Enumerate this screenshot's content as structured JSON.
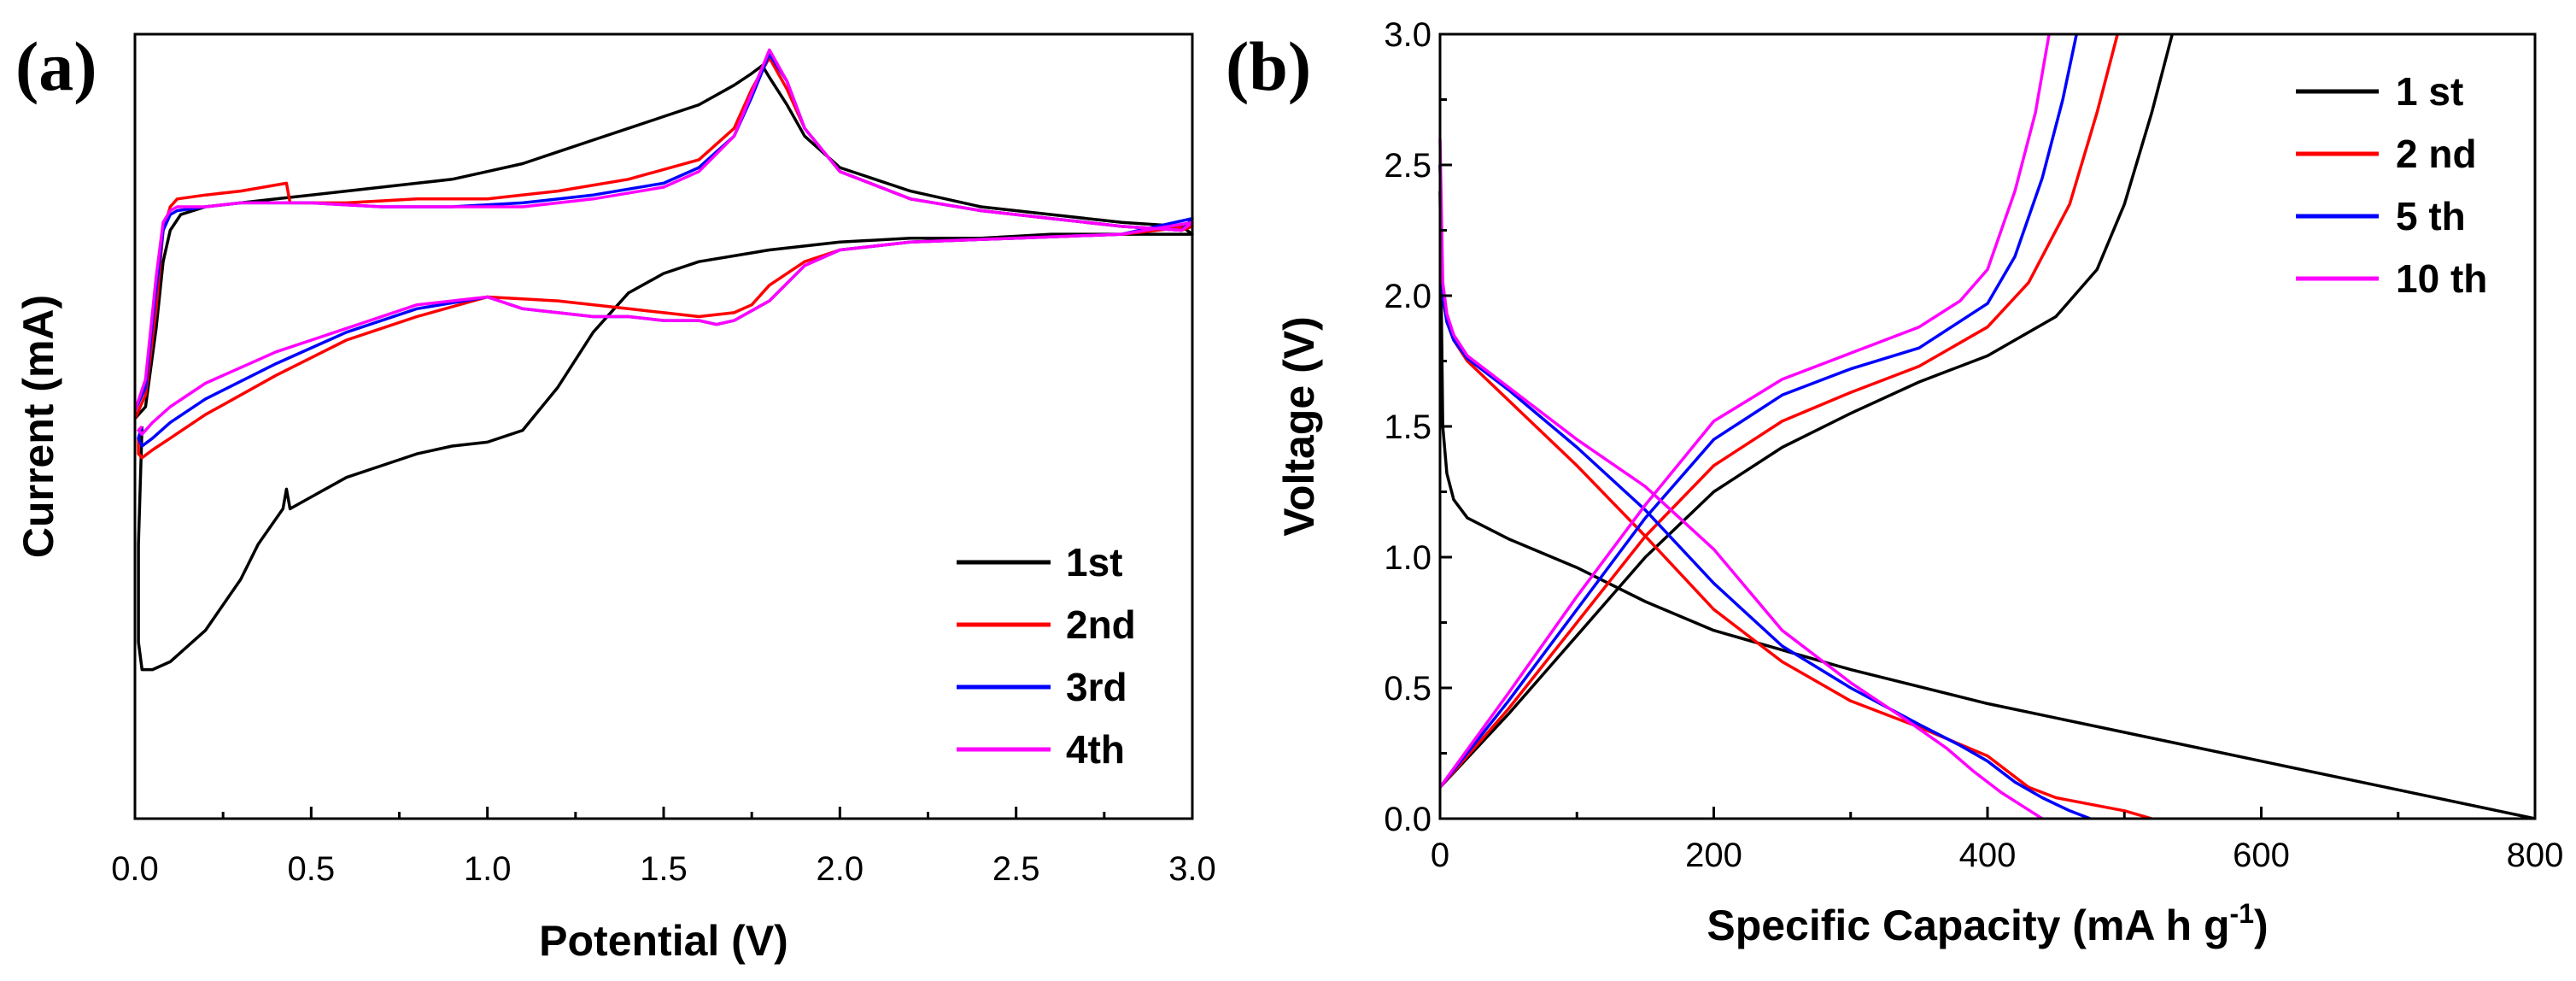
{
  "chart_data": [
    {
      "type": "line",
      "panel_label": "(a)",
      "xlabel": "Potential (V)",
      "ylabel": "Current (mA)",
      "xlim": [
        0.0,
        3.0
      ],
      "ylim": [
        -1.0,
        1.0
      ],
      "xticks": [
        "0.0",
        "0.5",
        "1.0",
        "1.5",
        "2.0",
        "2.5",
        "3.0"
      ],
      "yticks_visible": false,
      "legend_position": "bottom-right",
      "series": [
        {
          "name": "1st",
          "color": "#000000",
          "x": [
            0.0,
            0.03,
            0.06,
            0.08,
            0.1,
            0.13,
            0.2,
            0.3,
            0.4,
            0.5,
            0.6,
            0.7,
            0.8,
            0.9,
            1.0,
            1.1,
            1.2,
            1.3,
            1.4,
            1.5,
            1.6,
            1.7,
            1.75,
            1.78,
            1.8,
            1.85,
            1.9,
            2.0,
            2.2,
            2.4,
            2.6,
            2.8,
            2.97,
            3.0,
            2.8,
            2.6,
            2.4,
            2.2,
            2.0,
            1.8,
            1.6,
            1.5,
            1.4,
            1.3,
            1.2,
            1.1,
            1.0,
            0.9,
            0.8,
            0.7,
            0.6,
            0.5,
            0.44,
            0.43,
            0.42,
            0.35,
            0.3,
            0.2,
            0.1,
            0.05,
            0.02,
            0.01,
            0.01,
            0.02
          ],
          "y": [
            0.02,
            0.05,
            0.25,
            0.42,
            0.5,
            0.54,
            0.56,
            0.57,
            0.58,
            0.59,
            0.6,
            0.61,
            0.62,
            0.63,
            0.65,
            0.67,
            0.7,
            0.73,
            0.76,
            0.79,
            0.82,
            0.87,
            0.9,
            0.92,
            0.89,
            0.82,
            0.74,
            0.66,
            0.6,
            0.56,
            0.54,
            0.52,
            0.51,
            0.49,
            0.49,
            0.49,
            0.48,
            0.48,
            0.47,
            0.45,
            0.42,
            0.39,
            0.34,
            0.24,
            0.1,
            -0.01,
            -0.04,
            -0.05,
            -0.07,
            -0.1,
            -0.13,
            -0.18,
            -0.21,
            -0.16,
            -0.21,
            -0.3,
            -0.39,
            -0.52,
            -0.6,
            -0.62,
            -0.62,
            -0.55,
            -0.3,
            0.0
          ]
        },
        {
          "name": "2nd",
          "color": "#ff0000",
          "x": [
            0.0,
            0.03,
            0.06,
            0.08,
            0.1,
            0.12,
            0.2,
            0.3,
            0.43,
            0.44,
            0.5,
            0.6,
            0.8,
            1.0,
            1.2,
            1.4,
            1.6,
            1.7,
            1.75,
            1.8,
            1.85,
            1.9,
            2.0,
            2.2,
            2.4,
            2.6,
            2.8,
            2.97,
            3.0,
            2.8,
            2.5,
            2.2,
            2.0,
            1.9,
            1.8,
            1.75,
            1.7,
            1.6,
            1.5,
            1.4,
            1.2,
            1.0,
            0.8,
            0.6,
            0.4,
            0.2,
            0.1,
            0.05,
            0.02,
            0.01,
            0.01,
            0.02
          ],
          "y": [
            0.02,
            0.08,
            0.3,
            0.5,
            0.56,
            0.58,
            0.59,
            0.6,
            0.62,
            0.57,
            0.57,
            0.57,
            0.58,
            0.58,
            0.6,
            0.63,
            0.68,
            0.76,
            0.86,
            0.94,
            0.86,
            0.76,
            0.65,
            0.58,
            0.55,
            0.53,
            0.51,
            0.5,
            0.51,
            0.49,
            0.48,
            0.47,
            0.45,
            0.42,
            0.36,
            0.31,
            0.29,
            0.28,
            0.29,
            0.3,
            0.32,
            0.33,
            0.28,
            0.22,
            0.13,
            0.03,
            -0.03,
            -0.06,
            -0.08,
            -0.07,
            -0.03,
            0.0
          ]
        },
        {
          "name": "3rd",
          "color": "#0000ff",
          "x": [
            0.0,
            0.03,
            0.06,
            0.08,
            0.1,
            0.12,
            0.2,
            0.3,
            0.5,
            0.7,
            0.9,
            1.1,
            1.3,
            1.5,
            1.6,
            1.7,
            1.75,
            1.8,
            1.85,
            1.9,
            2.0,
            2.2,
            2.4,
            2.6,
            2.8,
            2.97,
            3.0,
            2.8,
            2.5,
            2.2,
            2.0,
            1.9,
            1.8,
            1.7,
            1.65,
            1.6,
            1.5,
            1.4,
            1.3,
            1.2,
            1.1,
            1.0,
            0.8,
            0.6,
            0.4,
            0.2,
            0.1,
            0.05,
            0.02,
            0.01,
            0.02
          ],
          "y": [
            0.04,
            0.1,
            0.35,
            0.5,
            0.54,
            0.55,
            0.56,
            0.57,
            0.57,
            0.56,
            0.56,
            0.57,
            0.59,
            0.62,
            0.66,
            0.74,
            0.84,
            0.95,
            0.88,
            0.76,
            0.65,
            0.58,
            0.55,
            0.53,
            0.51,
            0.5,
            0.53,
            0.49,
            0.48,
            0.47,
            0.45,
            0.41,
            0.32,
            0.27,
            0.26,
            0.27,
            0.27,
            0.28,
            0.28,
            0.29,
            0.3,
            0.33,
            0.3,
            0.24,
            0.16,
            0.07,
            0.01,
            -0.03,
            -0.05,
            -0.03,
            0.0
          ]
        },
        {
          "name": "4th",
          "color": "#ff00ff",
          "x": [
            0.0,
            0.03,
            0.06,
            0.08,
            0.1,
            0.12,
            0.2,
            0.3,
            0.5,
            0.7,
            0.9,
            1.1,
            1.3,
            1.5,
            1.6,
            1.7,
            1.75,
            1.8,
            1.85,
            1.9,
            2.0,
            2.2,
            2.4,
            2.6,
            2.8,
            2.97,
            3.0,
            2.8,
            2.5,
            2.2,
            2.0,
            1.9,
            1.8,
            1.7,
            1.65,
            1.6,
            1.5,
            1.4,
            1.3,
            1.2,
            1.1,
            1.0,
            0.8,
            0.6,
            0.4,
            0.2,
            0.1,
            0.05,
            0.02,
            0.01,
            0.02
          ],
          "y": [
            0.04,
            0.12,
            0.38,
            0.52,
            0.55,
            0.56,
            0.56,
            0.57,
            0.57,
            0.56,
            0.56,
            0.56,
            0.58,
            0.61,
            0.65,
            0.74,
            0.85,
            0.96,
            0.88,
            0.76,
            0.65,
            0.58,
            0.55,
            0.53,
            0.51,
            0.5,
            0.52,
            0.49,
            0.48,
            0.47,
            0.45,
            0.41,
            0.32,
            0.27,
            0.26,
            0.27,
            0.27,
            0.28,
            0.28,
            0.29,
            0.3,
            0.33,
            0.31,
            0.25,
            0.19,
            0.11,
            0.05,
            0.01,
            -0.02,
            -0.01,
            0.0
          ]
        }
      ]
    },
    {
      "type": "line",
      "panel_label": "(b)",
      "xlabel": "Specific Capacity (mA h g",
      "xlabel_superscript": "-1",
      "xlabel_suffix": ")",
      "ylabel": "Voltage (V)",
      "xlim": [
        0,
        800
      ],
      "ylim": [
        0.0,
        3.0
      ],
      "xticks": [
        "0",
        "200",
        "400",
        "600",
        "800"
      ],
      "yticks": [
        "0.0",
        "0.5",
        "1.0",
        "1.5",
        "2.0",
        "2.5",
        "3.0"
      ],
      "legend_position": "top-right",
      "series": [
        {
          "name": "1 st",
          "color": "#000000",
          "discharge": {
            "x": [
              0,
              2,
              5,
              10,
              20,
              50,
              100,
              150,
              200,
              300,
              400,
              500,
              600,
              700,
              800
            ],
            "y": [
              2.4,
              1.5,
              1.32,
              1.22,
              1.15,
              1.07,
              0.96,
              0.83,
              0.72,
              0.57,
              0.44,
              0.33,
              0.22,
              0.11,
              0.0
            ]
          },
          "charge": {
            "x": [
              0,
              50,
              100,
              150,
              200,
              250,
              300,
              350,
              400,
              450,
              480,
              500,
              520,
              535
            ],
            "y": [
              0.12,
              0.4,
              0.7,
              1.0,
              1.25,
              1.42,
              1.55,
              1.67,
              1.77,
              1.92,
              2.1,
              2.35,
              2.7,
              3.0
            ]
          }
        },
        {
          "name": "2 nd",
          "color": "#ff0000",
          "discharge": {
            "x": [
              0,
              2,
              5,
              10,
              20,
              50,
              100,
              150,
              200,
              250,
              300,
              350,
              400,
              430,
              450,
              480,
              500,
              520
            ],
            "y": [
              2.5,
              2.0,
              1.9,
              1.83,
              1.75,
              1.6,
              1.35,
              1.08,
              0.8,
              0.6,
              0.45,
              0.35,
              0.24,
              0.12,
              0.08,
              0.05,
              0.03,
              0.0
            ]
          },
          "charge": {
            "x": [
              0,
              50,
              100,
              150,
              200,
              250,
              300,
              350,
              400,
              430,
              460,
              480,
              495
            ],
            "y": [
              0.12,
              0.42,
              0.75,
              1.08,
              1.35,
              1.52,
              1.63,
              1.73,
              1.88,
              2.05,
              2.35,
              2.7,
              3.0
            ]
          }
        },
        {
          "name": "5 th",
          "color": "#0000ff",
          "discharge": {
            "x": [
              0,
              2,
              5,
              10,
              20,
              50,
              100,
              150,
              200,
              250,
              300,
              350,
              380,
              400,
              420,
              440,
              460,
              475
            ],
            "y": [
              2.5,
              2.0,
              1.9,
              1.83,
              1.76,
              1.64,
              1.42,
              1.18,
              0.9,
              0.66,
              0.5,
              0.36,
              0.28,
              0.22,
              0.14,
              0.08,
              0.03,
              0.0
            ]
          },
          "charge": {
            "x": [
              0,
              50,
              100,
              150,
              200,
              250,
              300,
              350,
              400,
              420,
              440,
              455,
              465
            ],
            "y": [
              0.12,
              0.45,
              0.8,
              1.15,
              1.45,
              1.62,
              1.72,
              1.8,
              1.97,
              2.15,
              2.45,
              2.75,
              3.0
            ]
          }
        },
        {
          "name": "10 th",
          "color": "#ff00ff",
          "discharge": {
            "x": [
              0,
              2,
              5,
              10,
              20,
              50,
              100,
              150,
              200,
              250,
              300,
              340,
              370,
              390,
              410,
              425,
              440
            ],
            "y": [
              2.6,
              2.05,
              1.93,
              1.85,
              1.77,
              1.65,
              1.45,
              1.27,
              1.03,
              0.72,
              0.52,
              0.38,
              0.27,
              0.18,
              0.1,
              0.05,
              0.0
            ]
          },
          "charge": {
            "x": [
              0,
              50,
              100,
              150,
              200,
              250,
              300,
              350,
              380,
              400,
              420,
              435,
              445
            ],
            "y": [
              0.12,
              0.48,
              0.85,
              1.2,
              1.52,
              1.68,
              1.78,
              1.88,
              1.98,
              2.1,
              2.4,
              2.7,
              3.0
            ]
          }
        }
      ]
    }
  ]
}
